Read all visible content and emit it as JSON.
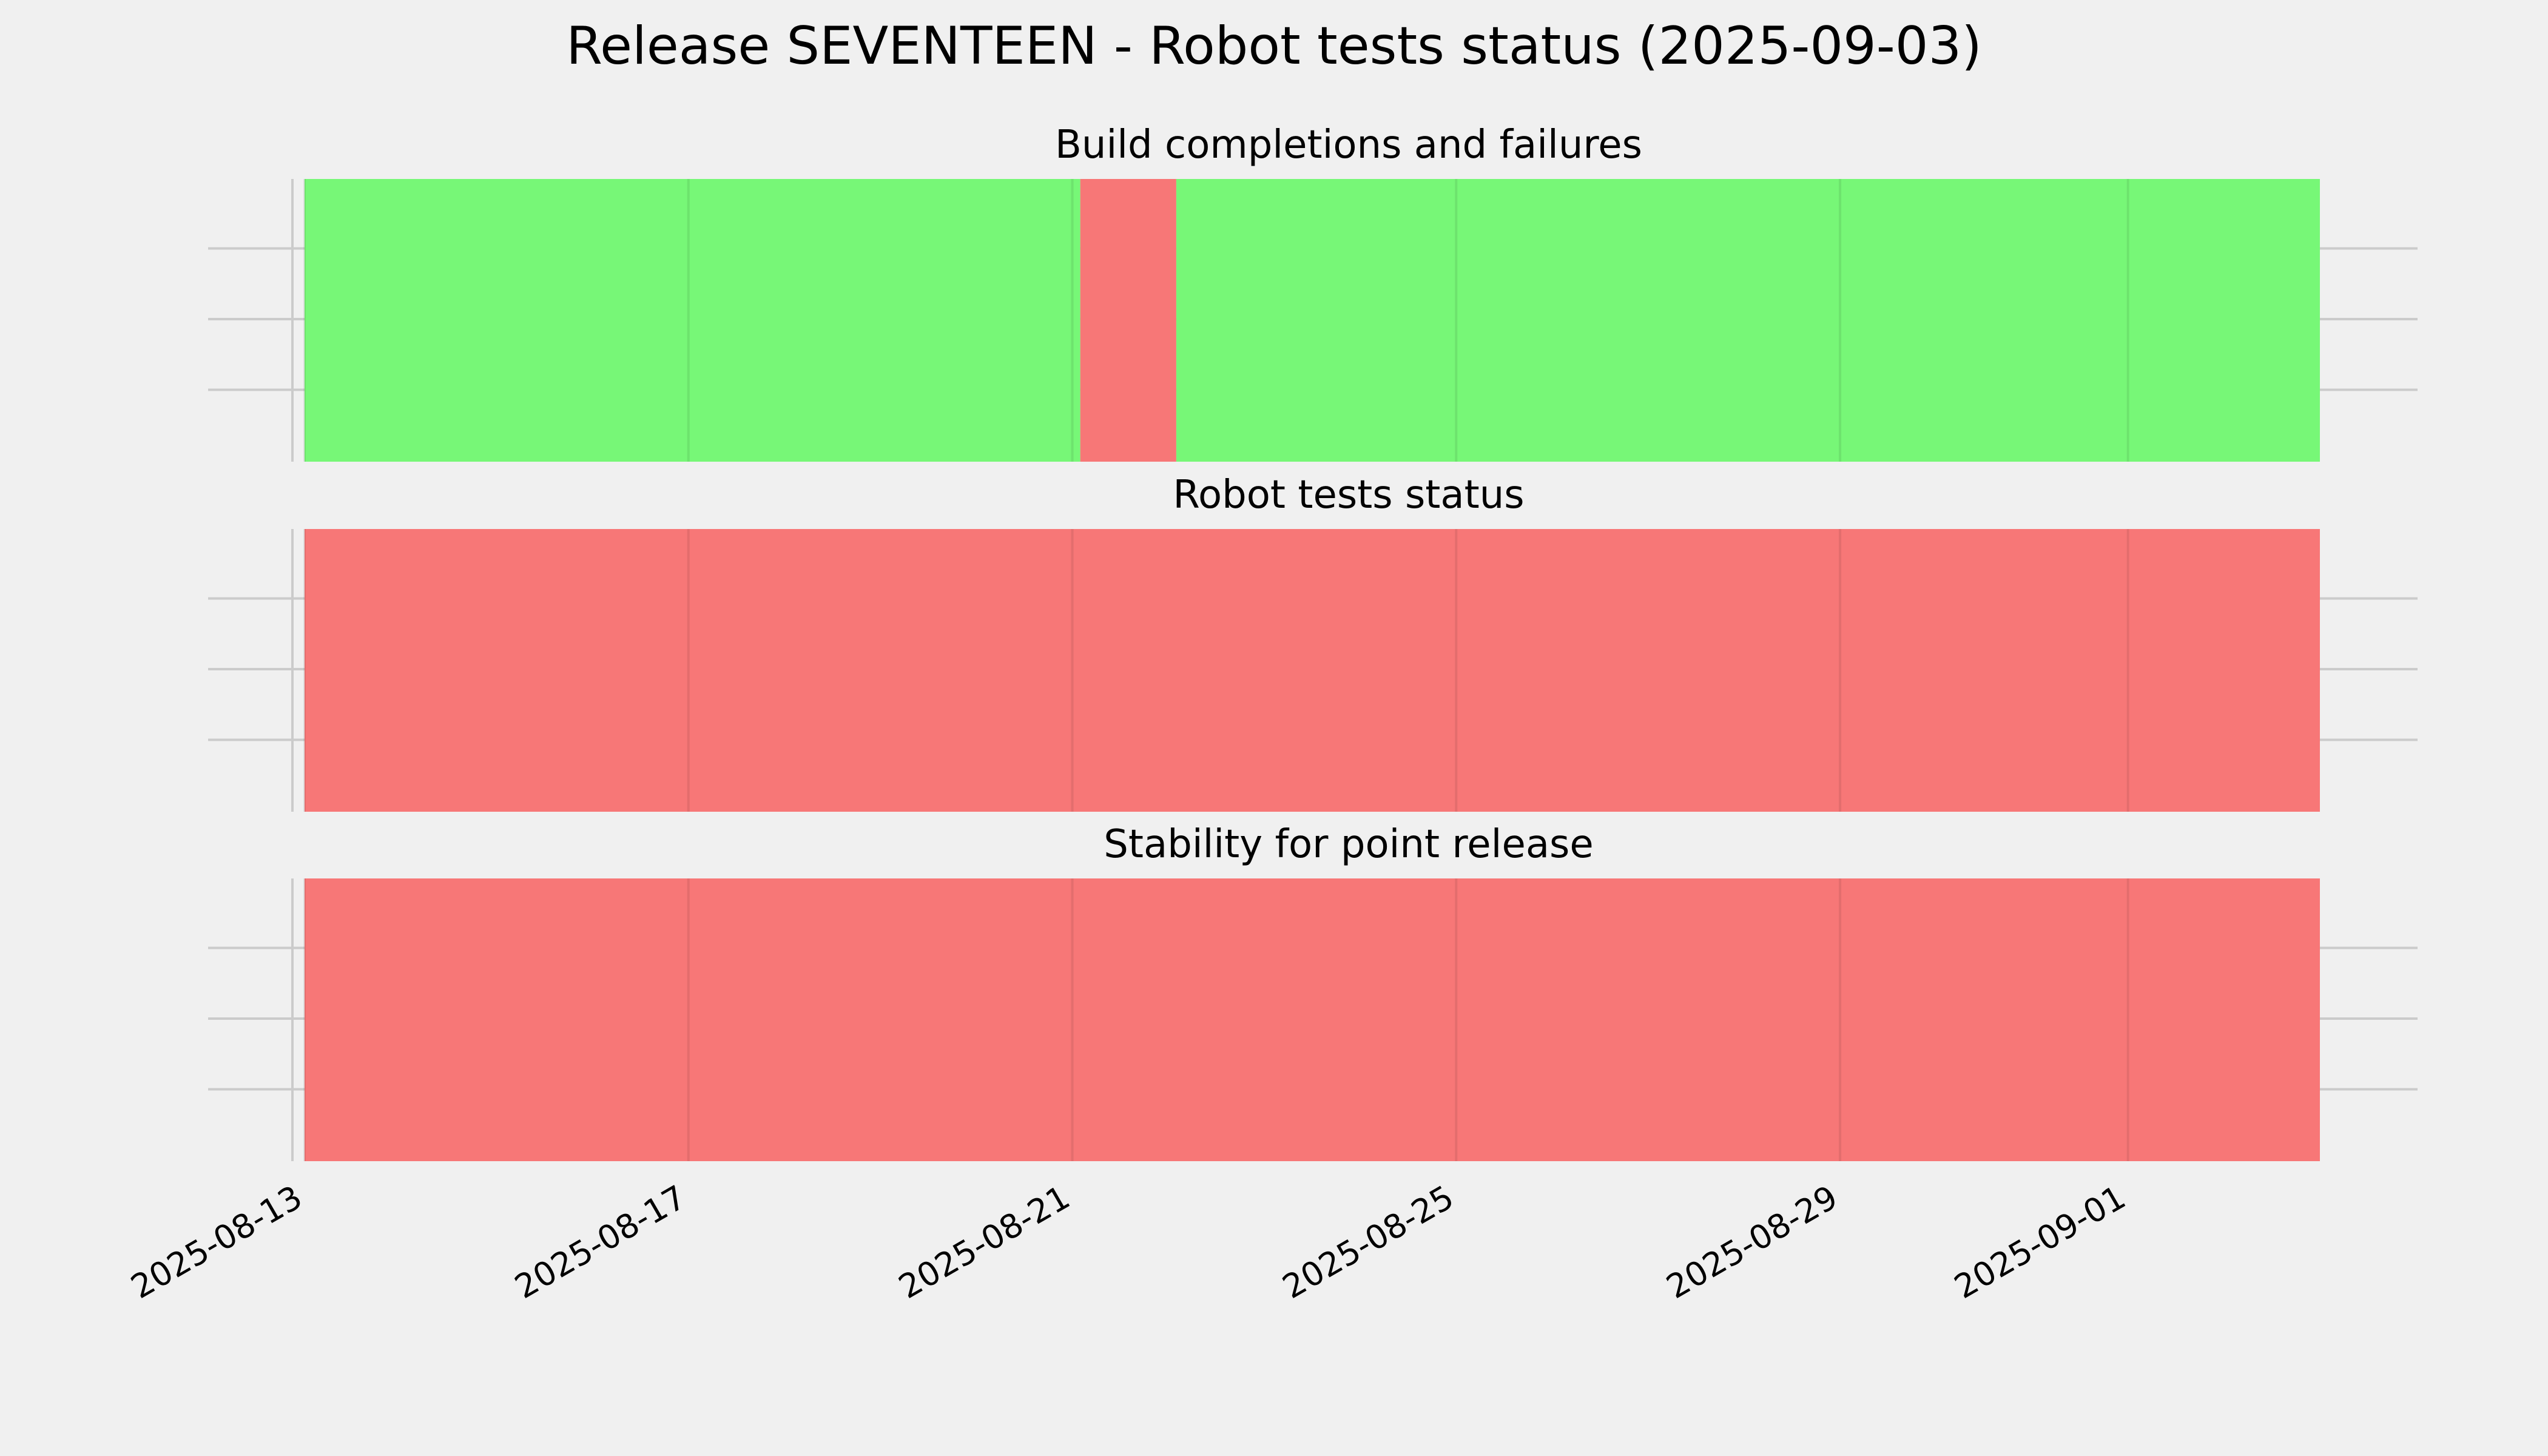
{
  "chart_data": {
    "type": "timeline",
    "title": "Release SEVENTEEN - Robot tests status (2025-09-03)",
    "x_axis": {
      "type": "date",
      "range": [
        "2025-08-13",
        "2025-09-03"
      ],
      "ticks": [
        "2025-08-13",
        "2025-08-17",
        "2025-08-21",
        "2025-08-25",
        "2025-08-29",
        "2025-09-01"
      ]
    },
    "grid": true,
    "colors": {
      "pass": "#77f777",
      "fail": "#f77777",
      "background": "#f0f0f0",
      "grid": "#cbcbcb"
    },
    "panels": [
      {
        "title": "Build completions and failures",
        "segments": [
          {
            "start": "2025-08-13",
            "end": "2025-08-21T02:00",
            "status": "pass"
          },
          {
            "start": "2025-08-21T02:00",
            "end": "2025-08-22T02:00",
            "status": "fail"
          },
          {
            "start": "2025-08-22T02:00",
            "end": "2025-09-03",
            "status": "pass"
          }
        ]
      },
      {
        "title": "Robot tests status",
        "segments": [
          {
            "start": "2025-08-13",
            "end": "2025-09-03",
            "status": "fail"
          }
        ]
      },
      {
        "title": "Stability for point release",
        "segments": [
          {
            "start": "2025-08-13",
            "end": "2025-09-03",
            "status": "fail"
          }
        ]
      }
    ]
  }
}
